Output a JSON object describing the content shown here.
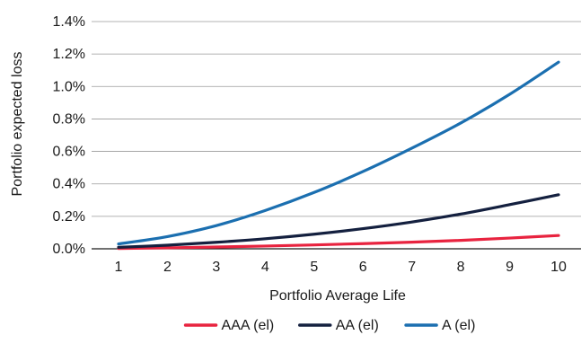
{
  "chart_data": {
    "type": "line",
    "title": "",
    "xlabel": "Portfolio Average Life",
    "ylabel": "Portfolio expected loss",
    "x": [
      1,
      2,
      3,
      4,
      5,
      6,
      7,
      8,
      9,
      10
    ],
    "x_tick_labels": [
      "1",
      "2",
      "3",
      "4",
      "5",
      "6",
      "7",
      "8",
      "9",
      "10"
    ],
    "y_ticks": [
      0.0,
      0.2,
      0.4,
      0.6,
      0.8,
      1.0,
      1.2,
      1.4
    ],
    "y_tick_labels": [
      "0.0%",
      "0.2%",
      "0.4%",
      "0.6%",
      "0.8%",
      "1.0%",
      "1.2%",
      "1.4%"
    ],
    "ylim": [
      0,
      1.4
    ],
    "y_unit": "%",
    "grid": "horizontal",
    "legend_position": "bottom-center",
    "series": [
      {
        "name": "AAA (el)",
        "color": "#e8233f",
        "values": [
          0.002,
          0.006,
          0.011,
          0.017,
          0.024,
          0.032,
          0.041,
          0.052,
          0.066,
          0.082
        ]
      },
      {
        "name": "AA (el)",
        "color": "#14203f",
        "values": [
          0.009,
          0.022,
          0.04,
          0.062,
          0.09,
          0.124,
          0.165,
          0.214,
          0.272,
          0.333
        ]
      },
      {
        "name": "A (el)",
        "color": "#1b6fb0",
        "values": [
          0.03,
          0.075,
          0.143,
          0.236,
          0.347,
          0.476,
          0.62,
          0.775,
          0.952,
          1.15
        ]
      }
    ]
  }
}
